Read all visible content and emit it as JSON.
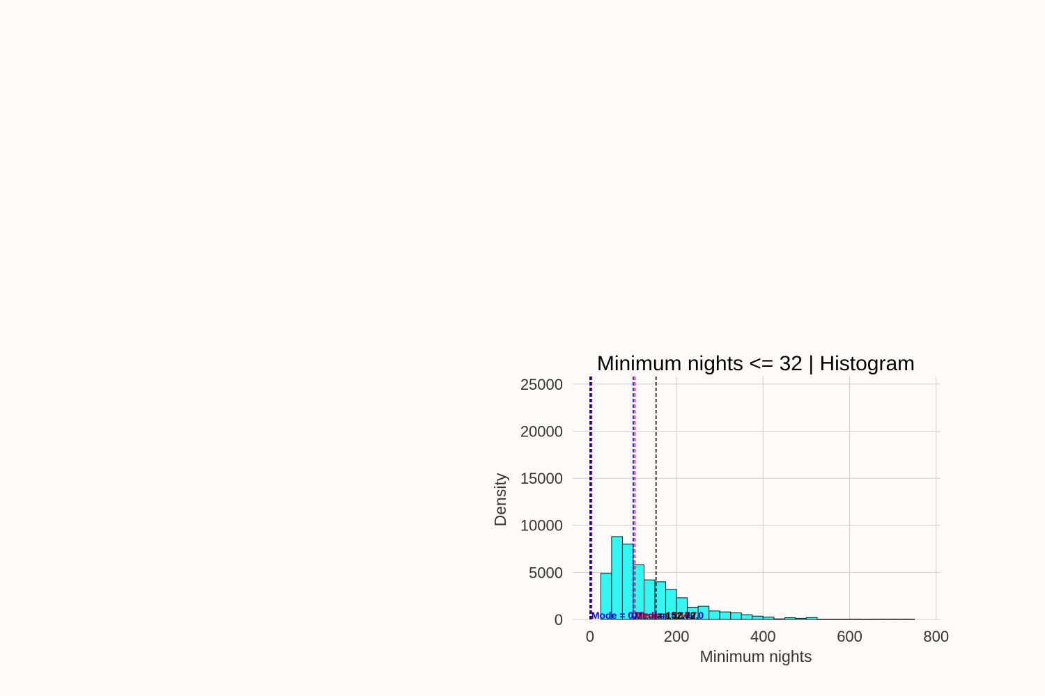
{
  "chart_data": {
    "type": "bar",
    "title": "Minimum nights <= 32 | Histogram",
    "xlabel": "Minimum nights",
    "ylabel": "Density",
    "xlim": [
      -40,
      810
    ],
    "ylim": [
      0,
      25800
    ],
    "x_ticks": [
      0,
      200,
      400,
      600,
      800
    ],
    "y_ticks": [
      0,
      5000,
      10000,
      15000,
      20000,
      25000
    ],
    "x_tick_labels": [
      "0",
      "200",
      "400",
      "600",
      "800"
    ],
    "y_tick_labels": [
      "0",
      "5000",
      "10000",
      "15000",
      "20000",
      "25000"
    ],
    "grid": true,
    "bar_color": "#33f5f2",
    "bar_edge_color": "#111111",
    "bins": [
      {
        "x0": 25,
        "x1": 50,
        "value": 4900
      },
      {
        "x0": 50,
        "x1": 75,
        "value": 8800
      },
      {
        "x0": 75,
        "x1": 100,
        "value": 8000
      },
      {
        "x0": 100,
        "x1": 125,
        "value": 5800
      },
      {
        "x0": 125,
        "x1": 150,
        "value": 4200
      },
      {
        "x0": 150,
        "x1": 175,
        "value": 4000
      },
      {
        "x0": 175,
        "x1": 200,
        "value": 3200
      },
      {
        "x0": 200,
        "x1": 225,
        "value": 2300
      },
      {
        "x0": 225,
        "x1": 250,
        "value": 1300
      },
      {
        "x0": 250,
        "x1": 275,
        "value": 1400
      },
      {
        "x0": 275,
        "x1": 300,
        "value": 900
      },
      {
        "x0": 300,
        "x1": 325,
        "value": 800
      },
      {
        "x0": 325,
        "x1": 350,
        "value": 700
      },
      {
        "x0": 350,
        "x1": 375,
        "value": 500
      },
      {
        "x0": 375,
        "x1": 400,
        "value": 350
      },
      {
        "x0": 400,
        "x1": 425,
        "value": 250
      },
      {
        "x0": 425,
        "x1": 450,
        "value": 60
      },
      {
        "x0": 450,
        "x1": 475,
        "value": 180
      },
      {
        "x0": 475,
        "x1": 500,
        "value": 120
      },
      {
        "x0": 500,
        "x1": 525,
        "value": 200
      },
      {
        "x0": 525,
        "x1": 550,
        "value": 30
      },
      {
        "x0": 550,
        "x1": 575,
        "value": 30
      },
      {
        "x0": 575,
        "x1": 600,
        "value": 30
      },
      {
        "x0": 600,
        "x1": 625,
        "value": 40
      },
      {
        "x0": 625,
        "x1": 650,
        "value": 30
      },
      {
        "x0": 650,
        "x1": 675,
        "value": 40
      },
      {
        "x0": 675,
        "x1": 700,
        "value": 40
      },
      {
        "x0": 700,
        "x1": 725,
        "value": 40
      },
      {
        "x0": 725,
        "x1": 750,
        "value": 40
      }
    ],
    "stat_lines": [
      {
        "x": 0,
        "color": "#0000ee",
        "label": "Mode = 0.0"
      },
      {
        "x": 2,
        "color": "#000000",
        "label": ""
      },
      {
        "x": 4,
        "color": "#dd0000",
        "label": ""
      },
      {
        "x": 100,
        "color": "#0000ee",
        "label": "Median = 100.0"
      },
      {
        "x": 104,
        "color": "#dd0000",
        "label": "Mean = 104.7"
      },
      {
        "x": 152.72,
        "color": "#000000",
        "label": "= 152.72"
      }
    ]
  }
}
